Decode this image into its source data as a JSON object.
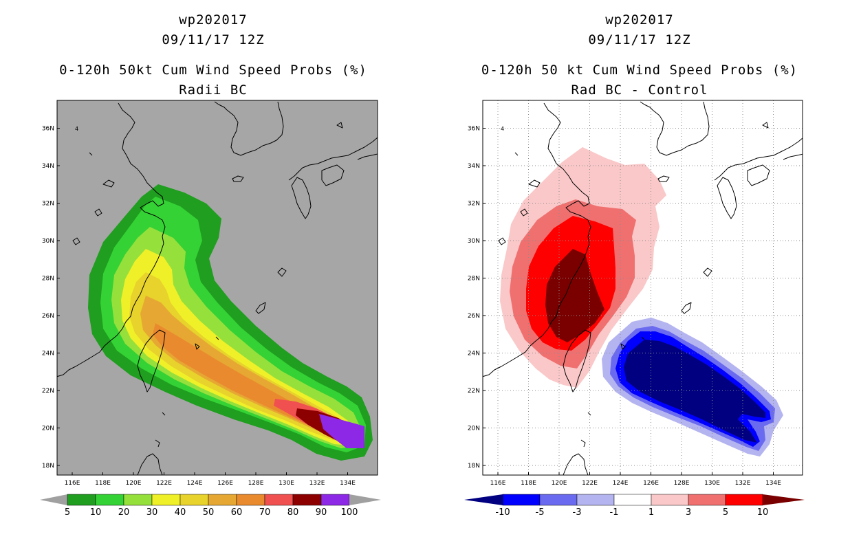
{
  "left": {
    "storm_id": "wp202017",
    "datetime": "09/11/17 12Z",
    "title": "0-120h 50kt Cum Wind Speed Probs (%)",
    "subtitle": "Radii BC",
    "colorbar": {
      "labels": [
        "5",
        "10",
        "20",
        "30",
        "40",
        "50",
        "60",
        "70",
        "80",
        "90",
        "100"
      ],
      "colors": [
        "#1f9e1f",
        "#34d234",
        "#96e03c",
        "#f0f028",
        "#e8d22c",
        "#e6a832",
        "#ea8a2e",
        "#f05050",
        "#8c0000",
        "#8c28e6"
      ],
      "arrow_color": "#a0a0a0"
    },
    "background": "#a6a6a6",
    "levels": [
      5,
      10,
      20,
      30,
      40,
      50,
      60,
      70,
      80,
      90
    ]
  },
  "right": {
    "storm_id": "wp202017",
    "datetime": "09/11/17 12Z",
    "title": "0-120h 50 kt Cum Wind Speed Probs (%)",
    "subtitle": "Rad BC - Control",
    "colorbar": {
      "labels": [
        "-10",
        "-5",
        "-3",
        "-1",
        "1",
        "3",
        "5",
        "10"
      ],
      "colors": [
        "#0000ff",
        "#6a6af0",
        "#b4b4f0",
        "#ffffff",
        "#fac8c8",
        "#f07070",
        "#ff0000"
      ],
      "arrow_left_color": "#000080",
      "arrow_right_color": "#7a0000"
    },
    "background": "#ffffff"
  },
  "axes": {
    "lon_ticks": [
      "116E",
      "118E",
      "120E",
      "122E",
      "124E",
      "126E",
      "128E",
      "130E",
      "132E",
      "134E"
    ],
    "lat_ticks": [
      "18N",
      "20N",
      "22N",
      "24N",
      "26N",
      "28N",
      "30N",
      "32N",
      "34N",
      "36N"
    ],
    "lon_range": [
      115,
      135
    ],
    "lat_range": [
      17.5,
      37.5
    ]
  },
  "map_label": "4"
}
